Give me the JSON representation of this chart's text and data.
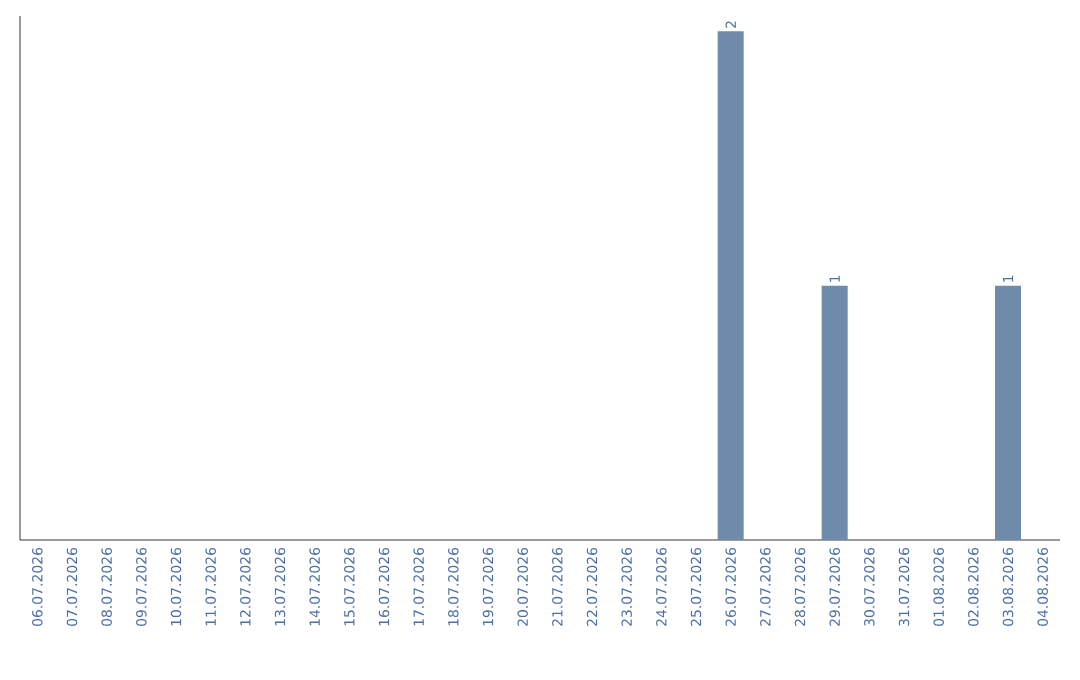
{
  "chart_data": {
    "type": "bar",
    "categories": [
      "06.07.2026",
      "07.07.2026",
      "08.07.2026",
      "09.07.2026",
      "10.07.2026",
      "11.07.2026",
      "12.07.2026",
      "13.07.2026",
      "14.07.2026",
      "15.07.2026",
      "16.07.2026",
      "17.07.2026",
      "18.07.2026",
      "19.07.2026",
      "20.07.2026",
      "21.07.2026",
      "22.07.2026",
      "23.07.2026",
      "24.07.2026",
      "25.07.2026",
      "26.07.2026",
      "27.07.2026",
      "28.07.2026",
      "29.07.2026",
      "30.07.2026",
      "31.07.2026",
      "01.08.2026",
      "02.08.2026",
      "03.08.2026",
      "04.08.2026"
    ],
    "values": [
      null,
      null,
      null,
      null,
      null,
      null,
      null,
      null,
      null,
      null,
      null,
      null,
      null,
      null,
      null,
      null,
      null,
      null,
      null,
      null,
      2,
      null,
      null,
      1,
      null,
      null,
      null,
      null,
      1,
      null
    ],
    "data_labels": true,
    "color": "#6e8caa"
  }
}
